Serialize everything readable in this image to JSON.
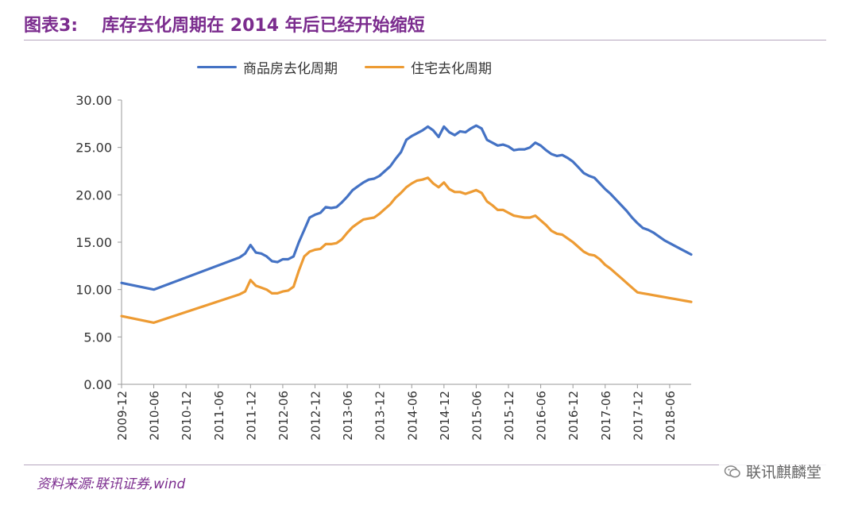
{
  "header": {
    "figure_no": "图表3:",
    "title": "库存去化周期在 2014 年后已经开始缩短"
  },
  "footer": {
    "source": "资料来源:联讯证券,wind",
    "watermark": "联讯麒麟堂"
  },
  "chart_data": {
    "type": "line",
    "title": "",
    "xlabel": "",
    "ylabel": "",
    "ylim": [
      0,
      30
    ],
    "yticks": [
      "0.00",
      "5.00",
      "10.00",
      "15.00",
      "20.00",
      "25.00",
      "30.00"
    ],
    "xticks": [
      "2009-12",
      "2010-06",
      "2010-12",
      "2011-06",
      "2011-12",
      "2012-06",
      "2012-12",
      "2013-06",
      "2013-12",
      "2014-06",
      "2014-12",
      "2015-06",
      "2015-12",
      "2016-06",
      "2016-12",
      "2017-06",
      "2017-12",
      "2018-06"
    ],
    "grid": false,
    "legend": "top",
    "x": [
      "2009-12",
      "2010-06",
      "2011-10",
      "2011-11",
      "2011-12",
      "2012-01",
      "2012-02",
      "2012-03",
      "2012-04",
      "2012-05",
      "2012-06",
      "2012-07",
      "2012-08",
      "2012-09",
      "2012-10",
      "2012-11",
      "2012-12",
      "2013-01",
      "2013-02",
      "2013-03",
      "2013-04",
      "2013-05",
      "2013-06",
      "2013-07",
      "2013-08",
      "2013-09",
      "2013-10",
      "2013-11",
      "2013-12",
      "2014-01",
      "2014-02",
      "2014-03",
      "2014-04",
      "2014-05",
      "2014-06",
      "2014-07",
      "2014-08",
      "2014-09",
      "2014-10",
      "2014-11",
      "2014-12",
      "2015-01",
      "2015-02",
      "2015-03",
      "2015-04",
      "2015-05",
      "2015-06",
      "2015-07",
      "2015-08",
      "2015-09",
      "2015-10",
      "2015-11",
      "2015-12",
      "2016-01",
      "2016-02",
      "2016-03",
      "2016-04",
      "2016-05",
      "2016-06",
      "2016-07",
      "2016-08",
      "2016-09",
      "2016-10",
      "2016-11",
      "2016-12",
      "2017-01",
      "2017-02",
      "2017-03",
      "2017-04",
      "2017-05",
      "2017-06",
      "2017-07",
      "2017-08",
      "2017-09",
      "2017-10",
      "2017-11",
      "2017-12",
      "2018-01",
      "2018-02",
      "2018-03",
      "2018-04",
      "2018-05",
      "2018-06",
      "2018-07",
      "2018-08",
      "2018-09",
      "2018-10"
    ],
    "series": [
      {
        "name": "商品房去化周期",
        "color": "#4472c4",
        "values": [
          10.7,
          10.0,
          13.4,
          13.8,
          14.7,
          13.9,
          13.8,
          13.5,
          13.0,
          12.9,
          13.2,
          13.2,
          13.5,
          15.0,
          16.3,
          17.6,
          17.9,
          18.1,
          18.7,
          18.6,
          18.7,
          19.2,
          19.8,
          20.5,
          20.9,
          21.3,
          21.6,
          21.7,
          22.0,
          22.5,
          23.0,
          23.8,
          24.5,
          25.8,
          26.2,
          26.5,
          26.8,
          27.2,
          26.8,
          26.1,
          27.2,
          26.6,
          26.3,
          26.7,
          26.6,
          27.0,
          27.3,
          27.0,
          25.8,
          25.5,
          25.2,
          25.3,
          25.1,
          24.7,
          24.8,
          24.8,
          25.0,
          25.5,
          25.2,
          24.7,
          24.3,
          24.1,
          24.2,
          23.9,
          23.5,
          22.9,
          22.3,
          22.0,
          21.8,
          21.2,
          20.6,
          20.1,
          19.5,
          18.9,
          18.3,
          17.6,
          17.0,
          16.5,
          16.3,
          16.0,
          15.6,
          15.2,
          14.9,
          14.6,
          14.3,
          14.0,
          13.7
        ],
        "note_series_only_first_points_used": ""
      },
      {
        "name": "住宅去化周期",
        "color": "#ed9b33",
        "values": [
          7.2,
          6.5,
          9.5,
          9.8,
          11.0,
          10.4,
          10.2,
          10.0,
          9.6,
          9.6,
          9.8,
          9.9,
          10.3,
          12.0,
          13.5,
          14.0,
          14.2,
          14.3,
          14.8,
          14.8,
          14.9,
          15.3,
          16.0,
          16.6,
          17.0,
          17.4,
          17.5,
          17.6,
          18.0,
          18.5,
          19.0,
          19.7,
          20.2,
          20.8,
          21.2,
          21.5,
          21.6,
          21.8,
          21.2,
          20.8,
          21.3,
          20.6,
          20.3,
          20.3,
          20.1,
          20.3,
          20.5,
          20.2,
          19.3,
          18.9,
          18.4,
          18.4,
          18.1,
          17.8,
          17.7,
          17.6,
          17.6,
          17.8,
          17.3,
          16.8,
          16.2,
          15.9,
          15.8,
          15.4,
          15.0,
          14.5,
          14.0,
          13.7,
          13.6,
          13.2,
          12.6,
          12.2,
          11.7,
          11.2,
          10.7,
          10.2,
          9.7,
          9.6,
          9.5,
          9.4,
          9.3,
          9.2,
          9.1,
          9.0,
          8.9,
          8.8,
          8.7
        ]
      }
    ]
  }
}
